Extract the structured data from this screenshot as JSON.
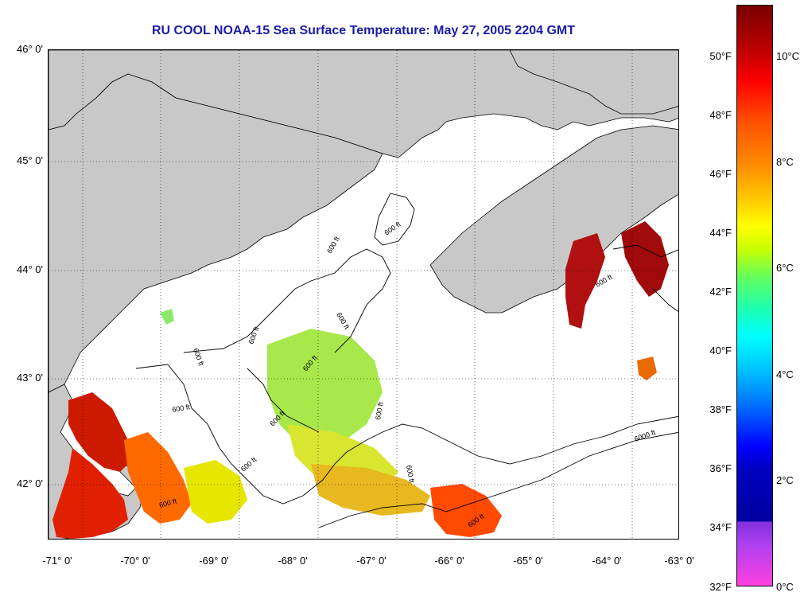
{
  "title": "RU COOL  NOAA-15  Sea Surface Temperature:  May 27, 2005 2204 GMT",
  "map": {
    "lat_labels": [
      "46° 0'",
      "45° 0'",
      "44° 0'",
      "43° 0'",
      "42° 0'"
    ],
    "lon_labels": [
      "-71° 0'",
      "-70° 0'",
      "-69° 0'",
      "-68° 0'",
      "-67° 0'",
      "-66° 0'",
      "-65° 0'",
      "-64° 0'",
      "-63° 0'"
    ],
    "depth_labels": [
      "600 ft",
      "600 ft",
      "600 ft",
      "600 ft",
      "600 ft",
      "600 ft",
      "600 ft",
      "600 ft",
      "600 ft",
      "600 ft",
      "600 ft",
      "600 ft",
      "6000 ft",
      "600 ft",
      "600 ft"
    ],
    "colors": {
      "land": "#c8c8c8",
      "no_data": "#ffffff",
      "grid": "#000000"
    }
  },
  "colorbar": {
    "fahrenheit_labels": [
      "50°F",
      "48°F",
      "46°F",
      "44°F",
      "42°F",
      "40°F",
      "38°F",
      "36°F",
      "34°F",
      "32°F"
    ],
    "celsius_labels": [
      "10°C",
      "8°C",
      "6°C",
      "4°C",
      "2°C",
      "0°C"
    ]
  }
}
